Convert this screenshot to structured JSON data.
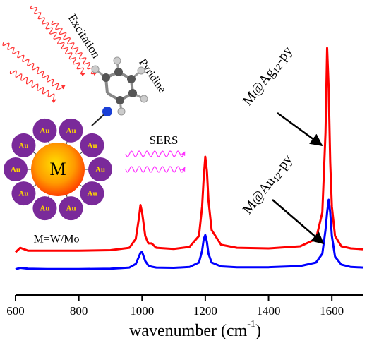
{
  "chart_data": {
    "type": "line",
    "x": [
      600,
      615,
      640,
      700,
      800,
      900,
      960,
      980,
      990,
      995,
      1000,
      1010,
      1020,
      1030,
      1045,
      1100,
      1150,
      1180,
      1190,
      1195,
      1200,
      1205,
      1210,
      1220,
      1250,
      1300,
      1400,
      1500,
      1550,
      1570,
      1580,
      1585,
      1590,
      1595,
      1600,
      1610,
      1630,
      1660,
      1700
    ],
    "series": [
      {
        "name": "M@Ag12-py",
        "color": "#ff0000",
        "values": [
          14.5,
          16,
          15,
          15,
          15,
          15.2,
          16,
          19,
          26,
          30.5,
          28,
          20,
          17.5,
          17.5,
          16,
          15.6,
          16.3,
          20,
          30,
          40,
          46.9,
          42,
          32,
          22,
          17,
          16,
          15.8,
          16.5,
          19,
          28,
          55,
          83.7,
          70,
          45,
          30,
          20,
          16.5,
          15.8,
          15.5
        ]
      },
      {
        "name": "M@Au12-py",
        "color": "#0000ff",
        "values": [
          8.7,
          9.2,
          8.9,
          8.8,
          8.8,
          8.9,
          9.3,
          10.5,
          13,
          14.3,
          14.6,
          11.5,
          10,
          9.6,
          9.3,
          9.2,
          9.5,
          11,
          15,
          19,
          20.3,
          18,
          14,
          11,
          9.7,
          9.4,
          9.4,
          9.8,
          11,
          14,
          22,
          28,
          32.3,
          28,
          20,
          13,
          10.3,
          9.5,
          9.3
        ]
      }
    ],
    "xlim": [
      600,
      1700
    ],
    "ylim": [
      0,
      100
    ],
    "xticks": [
      600,
      800,
      1000,
      1200,
      1400,
      1600
    ],
    "xlabel": [
      "wavenumber (cm",
      "-1",
      ")"
    ],
    "peak_labels": [
      [
        "M@Ag",
        "12",
        "-py"
      ],
      [
        "M@Au",
        "12",
        "-py"
      ]
    ],
    "illustration": {
      "center": "M",
      "ligand": "Au",
      "formula": "M=W/Mo",
      "excitation": "Excitation",
      "molecule": "Pyridine",
      "sers": "SERS"
    }
  }
}
